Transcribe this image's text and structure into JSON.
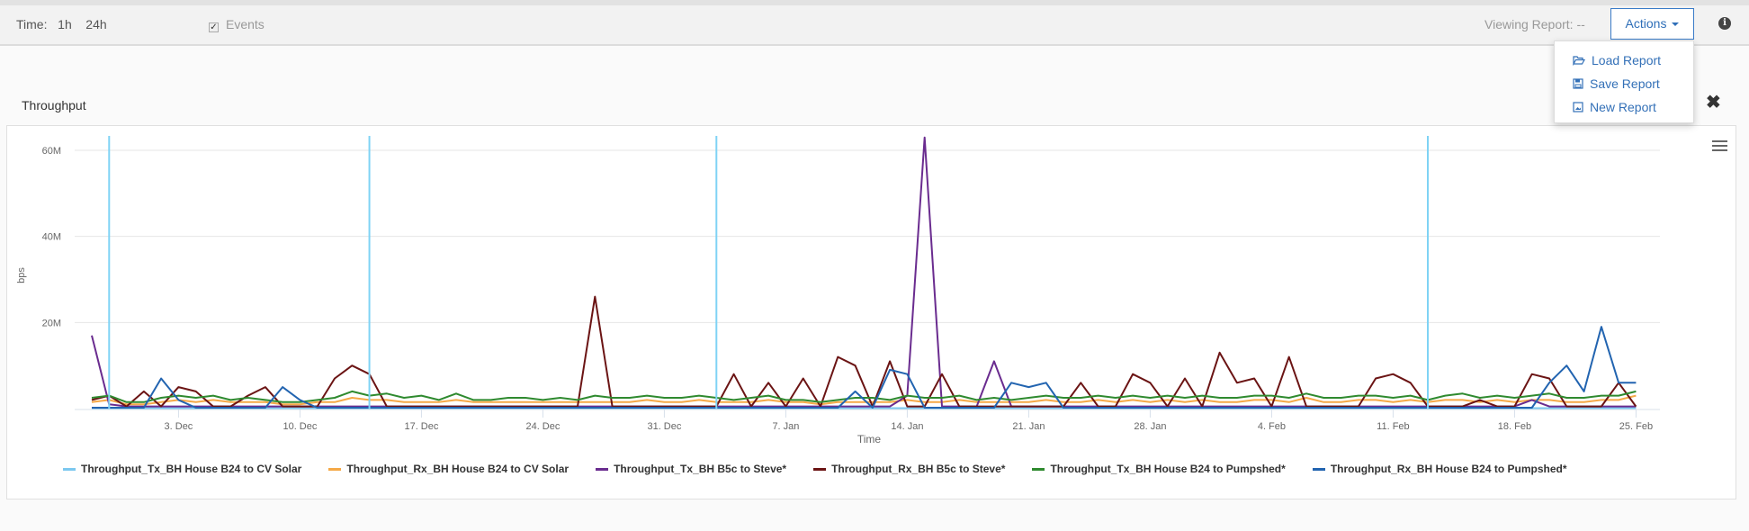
{
  "toolbar": {
    "time_label": "Time:",
    "time_options": [
      "1h",
      "24h"
    ],
    "events_label": "Events",
    "events_checked": true,
    "viewing_label": "Viewing Report: --",
    "actions_label": "Actions"
  },
  "actions_menu": {
    "items": [
      {
        "label": "Load Report",
        "icon": "folder-open-icon"
      },
      {
        "label": "Save Report",
        "icon": "floppy-disk-icon"
      },
      {
        "label": "New Report",
        "icon": "new-file-icon"
      }
    ]
  },
  "panel": {
    "title": "Throughput"
  },
  "chart_data": {
    "type": "line",
    "xlabel": "Time",
    "ylabel": "bps",
    "ylim": [
      0,
      64000000
    ],
    "yticks": [
      "20M",
      "40M",
      "60M"
    ],
    "ytick_values": [
      20,
      40,
      60
    ],
    "y_unit": "M bps",
    "xticks": [
      "3. Dec",
      "10. Dec",
      "17. Dec",
      "24. Dec",
      "31. Dec",
      "7. Jan",
      "14. Jan",
      "21. Jan",
      "28. Jan",
      "4. Feb",
      "11. Feb",
      "18. Feb",
      "25. Feb"
    ],
    "x_start": "28 Nov",
    "x_interval": "1 day",
    "grid": true,
    "legend_placement": "bottom",
    "events": [
      "29 Nov",
      "14 Dec",
      "3 Jan",
      "13 Feb"
    ],
    "event_color": "#7fd3f5",
    "series": [
      {
        "name": "Throughput_Tx_BH House B24 to CV Solar",
        "color": "#7cc8ef",
        "values": [
          0.1,
          0.1,
          0.1,
          0.1,
          0.1,
          0.1,
          0.1,
          0.1,
          0.1,
          0.1,
          0.1,
          0.1,
          0.1,
          0.1,
          0.1,
          0.1,
          0.1,
          0.1,
          0.1,
          0.1,
          0.1,
          0.1,
          0.1,
          0.1,
          0.1,
          0.1,
          0.1,
          0.1,
          0.1,
          0.1,
          0.1,
          0.1,
          0.1,
          0.1,
          0.1,
          0.1,
          0.1,
          0.1,
          0.1,
          0.1,
          0.1,
          0.1,
          0.1,
          0.1,
          0.1,
          0.1,
          0.1,
          0.1,
          0.1,
          0.1,
          0.1,
          0.1,
          0.1,
          0.1,
          0.1,
          0.1,
          0.1,
          0.1,
          0.1,
          0.1,
          0.1,
          0.1,
          0.1,
          0.1,
          0.1,
          0.1,
          0.1,
          0.1,
          0.1,
          0.1,
          0.1,
          0.1,
          0.1,
          0.1,
          0.1,
          0.1,
          0.1,
          0.1,
          0.1,
          0.1,
          0.1,
          0.1,
          0.1,
          0.1,
          0.1,
          0.1,
          0.1,
          0.1,
          0.1,
          0.1
        ]
      },
      {
        "name": "Throughput_Rx_BH House B24 to CV Solar",
        "color": "#f5a947",
        "values": [
          1.5,
          2,
          1,
          1,
          1.5,
          2,
          1.5,
          2,
          1.5,
          1.5,
          1.5,
          1,
          1,
          1.5,
          1.5,
          2.5,
          2,
          2,
          1.5,
          1.5,
          1.5,
          2,
          1.5,
          1.5,
          1.5,
          1.5,
          1.5,
          1.5,
          1.5,
          1.5,
          1.5,
          1.5,
          2,
          1.5,
          1.5,
          2,
          1.5,
          1.5,
          1.5,
          2,
          1.5,
          1.5,
          1,
          1.5,
          1.5,
          1.5,
          1.5,
          2,
          1.5,
          1.5,
          2,
          1.5,
          1.5,
          1.5,
          1.5,
          2,
          1.5,
          1.5,
          2,
          1.5,
          2,
          1.5,
          2,
          1.5,
          2,
          1.5,
          1.5,
          2,
          2,
          1.5,
          2.5,
          1.5,
          1.5,
          2,
          2,
          1.5,
          2,
          1.5,
          2,
          2,
          1.5,
          2,
          1.5,
          2,
          2,
          1.5,
          1.5,
          2,
          2,
          3
        ]
      },
      {
        "name": "Throughput_Tx_BH B5c to Steve*",
        "color": "#6a2c8f",
        "values": [
          17,
          1,
          0.5,
          0.5,
          0.5,
          0.5,
          0.5,
          0.5,
          0.5,
          0.5,
          0.5,
          0.5,
          0.5,
          0.5,
          0.5,
          0.5,
          0.5,
          0.5,
          0.5,
          0.5,
          0.5,
          0.5,
          0.5,
          0.5,
          0.5,
          0.5,
          0.5,
          0.5,
          0.5,
          0.5,
          0.5,
          0.5,
          0.5,
          0.5,
          0.5,
          0.5,
          0.5,
          0.5,
          0.5,
          0.5,
          0.5,
          0.5,
          0.5,
          0.5,
          0.5,
          0.5,
          0.5,
          3,
          63,
          0.5,
          0.5,
          0.5,
          11,
          0.5,
          0.5,
          0.5,
          0.5,
          0.5,
          0.5,
          0.5,
          0.5,
          0.5,
          0.5,
          0.5,
          0.5,
          0.5,
          0.5,
          0.5,
          0.5,
          0.5,
          0.5,
          0.5,
          0.5,
          0.5,
          0.5,
          0.5,
          0.5,
          0.5,
          0.5,
          0.5,
          0.5,
          0.5,
          0.5,
          2,
          0.5,
          0.5,
          0.5,
          0.5,
          0.5,
          0.5
        ]
      },
      {
        "name": "Throughput_Rx_BH B5c to Steve*",
        "color": "#6b1414",
        "values": [
          2,
          3,
          0.5,
          4,
          0.5,
          5,
          4,
          0.5,
          0.5,
          3,
          5,
          0.5,
          0.5,
          0.5,
          7,
          10,
          8,
          0.5,
          0.5,
          0.5,
          0.5,
          0.5,
          0.5,
          0.5,
          0.5,
          0.5,
          0.5,
          0.5,
          0.5,
          26,
          0.5,
          0.5,
          0.5,
          0.5,
          0.5,
          0.5,
          0.5,
          8,
          0.5,
          6,
          0.5,
          7,
          0.5,
          12,
          10,
          0.5,
          11,
          0.5,
          0.5,
          8,
          0.5,
          0.5,
          0.5,
          0.5,
          0.5,
          0.5,
          0.5,
          6,
          0.5,
          0.5,
          8,
          6,
          0.5,
          7,
          0.5,
          13,
          6,
          7,
          0.5,
          12,
          0.5,
          0.5,
          0.5,
          0.5,
          7,
          8,
          6,
          0.5,
          0.5,
          0.5,
          2,
          0.5,
          0.5,
          8,
          7,
          0.5,
          0.5,
          0.5,
          6,
          0.5
        ]
      },
      {
        "name": "Throughput_Tx_BH House B24 to Pumpshed*",
        "color": "#2f8a2f",
        "values": [
          2.5,
          3,
          1.5,
          1.5,
          2.5,
          3,
          2.5,
          3,
          2,
          2.5,
          2,
          1.5,
          1.5,
          2,
          2.5,
          4,
          3,
          3.5,
          2.5,
          3,
          2,
          3.5,
          2,
          2,
          2.5,
          2.5,
          2,
          2.5,
          2,
          3,
          2.5,
          2.5,
          3,
          2.5,
          2.5,
          3,
          2.5,
          2,
          2.5,
          3,
          2,
          2,
          1.5,
          2,
          2.5,
          2.5,
          2,
          3,
          2.5,
          2.5,
          3,
          2,
          2.5,
          2,
          2.5,
          3,
          2.5,
          2.5,
          3,
          2.5,
          3,
          2.5,
          3,
          2.5,
          3,
          2.5,
          2.5,
          3,
          3,
          2.5,
          3.5,
          2.5,
          2.5,
          3,
          3,
          2.5,
          3,
          2,
          3,
          3.5,
          2.5,
          3,
          2.5,
          3,
          3.5,
          2.5,
          2.5,
          3,
          3,
          4
        ]
      },
      {
        "name": "Throughput_Rx_BH House B24 to Pumpshed*",
        "color": "#2264b0",
        "values": [
          0.2,
          0.2,
          0.2,
          0.2,
          7,
          2,
          0.2,
          0.2,
          0.2,
          0.2,
          0.2,
          5,
          2,
          0.2,
          0.2,
          0.2,
          0.2,
          0.2,
          0.2,
          0.2,
          0.2,
          0.2,
          0.2,
          0.2,
          0.2,
          0.2,
          0.2,
          0.2,
          0.2,
          0.2,
          0.2,
          0.2,
          0.2,
          0.2,
          0.2,
          0.2,
          0.2,
          0.2,
          0.2,
          0.2,
          0.2,
          0.2,
          0.2,
          0.2,
          4,
          0.2,
          9,
          8,
          0.2,
          0.2,
          0.2,
          0.2,
          0.2,
          6,
          5,
          6,
          0.2,
          0.2,
          0.2,
          0.2,
          0.2,
          0.2,
          0.2,
          0.2,
          0.2,
          0.2,
          0.2,
          0.2,
          0.2,
          0.2,
          0.2,
          0.2,
          0.2,
          0.2,
          0.2,
          0.2,
          0.2,
          0.2,
          0.2,
          0.2,
          0.2,
          0.2,
          0.2,
          0.2,
          6,
          10,
          4,
          19,
          6,
          6
        ]
      }
    ]
  }
}
